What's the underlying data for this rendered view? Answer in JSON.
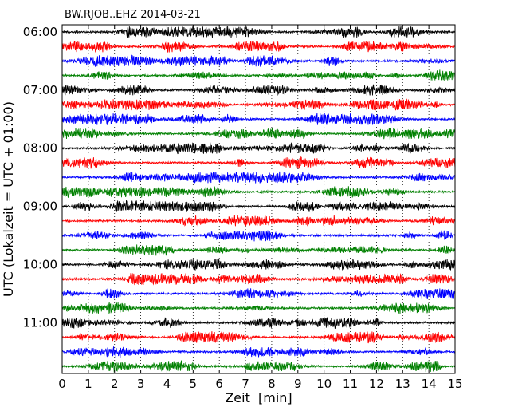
{
  "chart_data": {
    "type": "line",
    "title": "BW.RJOB..EHZ 2014-03-21",
    "xlabel": "Zeit  [min]",
    "ylabel": "UTC (Lokalzeit = UTC + 01:00)",
    "xlim": [
      0,
      15
    ],
    "x_ticks": [
      "0",
      "1",
      "2",
      "3",
      "4",
      "5",
      "6",
      "7",
      "8",
      "9",
      "10",
      "11",
      "12",
      "13",
      "14",
      "15"
    ],
    "y_ticks": [
      "06:00",
      "07:00",
      "08:00",
      "09:00",
      "10:00",
      "11:00"
    ],
    "y_tick_traces": [
      0,
      4,
      8,
      12,
      16,
      20
    ],
    "trace_count": 24,
    "trace_interval_min": 15,
    "trace_colors": [
      "#000000",
      "#ff0000",
      "#0000ff",
      "#008000"
    ],
    "grid": "vertical dotted at each minute",
    "legend": "none"
  }
}
